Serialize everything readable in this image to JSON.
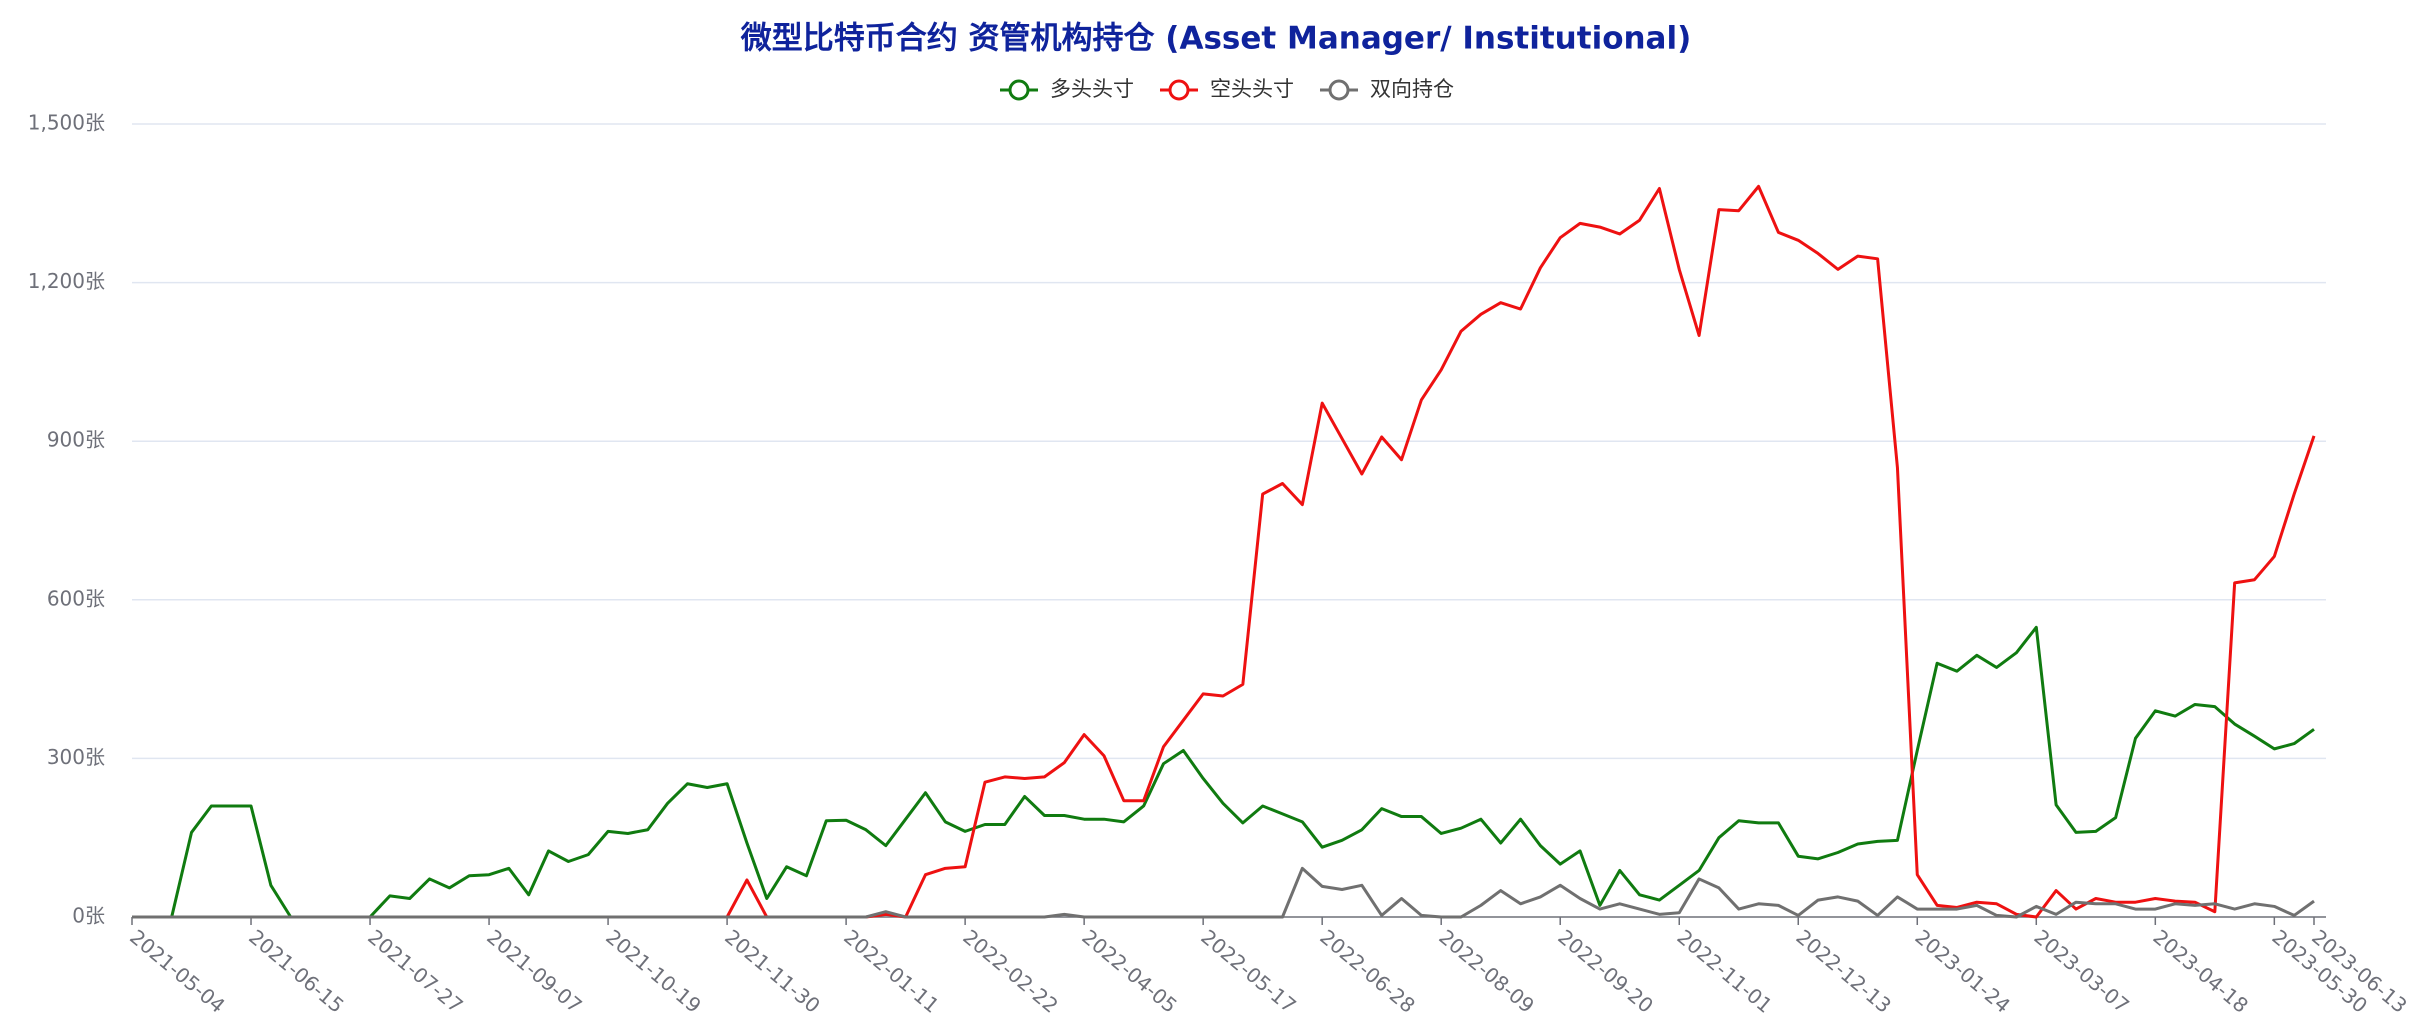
{
  "chart_data": {
    "type": "line",
    "title": "微型比特币合约 资管机构持仓 (Asset Manager/ Institutional)",
    "categories": [
      "2021-05-04",
      null,
      null,
      null,
      null,
      null,
      "2021-06-15",
      null,
      null,
      null,
      null,
      null,
      "2021-07-27",
      null,
      null,
      null,
      null,
      null,
      "2021-09-07",
      null,
      null,
      null,
      null,
      null,
      "2021-10-19",
      null,
      null,
      null,
      null,
      null,
      "2021-11-30",
      null,
      null,
      null,
      null,
      null,
      "2022-01-11",
      null,
      null,
      null,
      null,
      null,
      "2022-02-22",
      null,
      null,
      null,
      null,
      null,
      "2022-04-05",
      null,
      null,
      null,
      null,
      null,
      "2022-05-17",
      null,
      null,
      null,
      null,
      null,
      "2022-06-28",
      null,
      null,
      null,
      null,
      null,
      "2022-08-09",
      null,
      null,
      null,
      null,
      null,
      "2022-09-20",
      null,
      null,
      null,
      null,
      null,
      "2022-11-01",
      null,
      null,
      null,
      null,
      null,
      "2022-12-13",
      null,
      null,
      null,
      null,
      null,
      "2023-01-24",
      null,
      null,
      null,
      null,
      null,
      "2023-03-07",
      null,
      null,
      null,
      null,
      null,
      "2023-04-18",
      null,
      null,
      null,
      null,
      null,
      "2023-05-30",
      null,
      "2023-06-13"
    ],
    "series": [
      {
        "name": "多头头寸",
        "color": "#107b10",
        "values": [
          0,
          0,
          0,
          160,
          210,
          210,
          210,
          60,
          0,
          0,
          0,
          0,
          0,
          40,
          35,
          72,
          55,
          78,
          80,
          92,
          42,
          125,
          105,
          118,
          162,
          158,
          165,
          215,
          252,
          245,
          252,
          140,
          35,
          95,
          78,
          182,
          183,
          165,
          135,
          185,
          235,
          180,
          162,
          175,
          175,
          228,
          192,
          192,
          185,
          185,
          180,
          210,
          290,
          315,
          262,
          215,
          178,
          210,
          195,
          180,
          132,
          145,
          165,
          205,
          190,
          190,
          158,
          168,
          185,
          140,
          185,
          135,
          100,
          125,
          22,
          88,
          42,
          32,
          60,
          88,
          150,
          182,
          178,
          178,
          115,
          110,
          122,
          138,
          143,
          145,
          315,
          480,
          465,
          495,
          472,
          500,
          548,
          212,
          160,
          162,
          188,
          338,
          390,
          380,
          402,
          398,
          365,
          342,
          318,
          328,
          355
        ]
      },
      {
        "name": "空头头寸",
        "color": "#ee1111",
        "values": [
          0,
          0,
          0,
          0,
          0,
          0,
          0,
          0,
          0,
          0,
          0,
          0,
          0,
          0,
          0,
          0,
          0,
          0,
          0,
          0,
          0,
          0,
          0,
          0,
          0,
          0,
          0,
          0,
          0,
          0,
          0,
          70,
          0,
          0,
          0,
          0,
          0,
          0,
          5,
          0,
          80,
          92,
          95,
          255,
          265,
          262,
          265,
          292,
          345,
          305,
          220,
          220,
          322,
          372,
          422,
          418,
          440,
          800,
          820,
          780,
          972,
          905,
          838,
          908,
          865,
          978,
          1035,
          1108,
          1140,
          1162,
          1150,
          1228,
          1285,
          1312,
          1305,
          1292,
          1318,
          1378,
          1225,
          1100,
          1338,
          1336,
          1382,
          1295,
          1280,
          1255,
          1225,
          1250,
          1245,
          850,
          80,
          22,
          18,
          28,
          25,
          5,
          0,
          50,
          15,
          35,
          28,
          28,
          35,
          30,
          28,
          10,
          632,
          638,
          682,
          800,
          910
        ]
      },
      {
        "name": "双向持仓",
        "color": "#707070",
        "values": [
          0,
          0,
          0,
          0,
          0,
          0,
          0,
          0,
          0,
          0,
          0,
          0,
          0,
          0,
          0,
          0,
          0,
          0,
          0,
          0,
          0,
          0,
          0,
          0,
          0,
          0,
          0,
          0,
          0,
          0,
          0,
          0,
          0,
          0,
          0,
          0,
          0,
          0,
          10,
          0,
          0,
          0,
          0,
          0,
          0,
          0,
          0,
          5,
          0,
          0,
          0,
          0,
          0,
          0,
          0,
          0,
          0,
          0,
          0,
          92,
          58,
          52,
          60,
          3,
          35,
          3,
          0,
          0,
          22,
          50,
          25,
          38,
          60,
          35,
          15,
          25,
          15,
          5,
          8,
          72,
          55,
          15,
          25,
          22,
          3,
          32,
          38,
          30,
          3,
          38,
          15,
          15,
          15,
          22,
          3,
          0,
          20,
          5,
          28,
          25,
          25,
          15,
          15,
          25,
          22,
          25,
          15,
          25,
          20,
          3,
          30
        ]
      }
    ],
    "ylim": [
      0,
      1500
    ],
    "yticks": [
      {
        "value": 0,
        "label": "0张"
      },
      {
        "value": 300,
        "label": "300张"
      },
      {
        "value": 600,
        "label": "600张"
      },
      {
        "value": 900,
        "label": "900张"
      },
      {
        "value": 1200,
        "label": "1,200张"
      },
      {
        "value": 1500,
        "label": "1,500张"
      }
    ],
    "grid": true
  }
}
